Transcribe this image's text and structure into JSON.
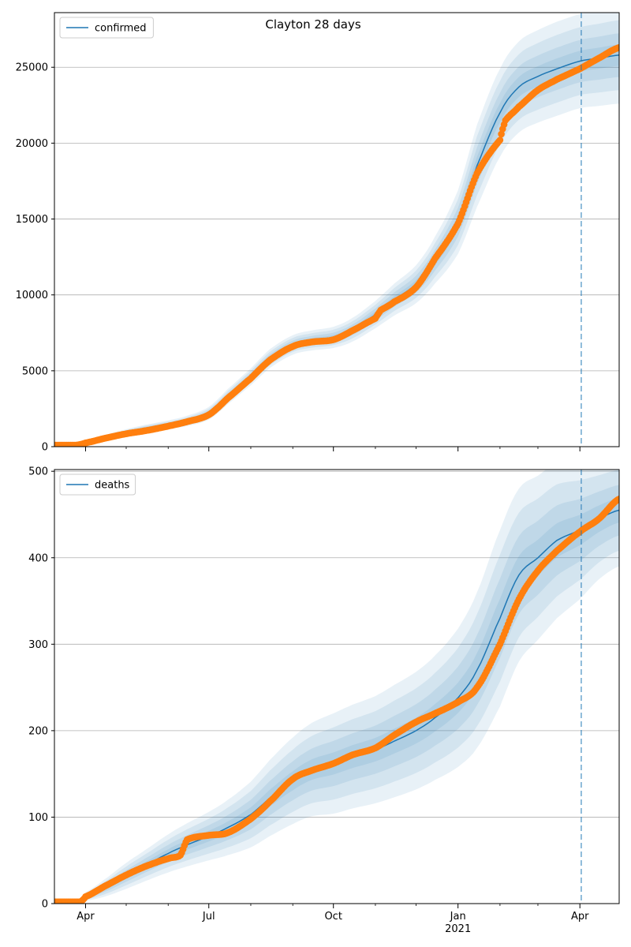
{
  "figure_title": "Clayton 28 days",
  "colors": {
    "model_line": "#1f77b4",
    "band": "#1f77b4",
    "observed": "#ff7f0e",
    "forecast_start": "#1f77b4",
    "grid": "#b0b0b0"
  },
  "x_axis": {
    "start_date": "2020-03-09",
    "end_date": "2021-04-30",
    "tick_labels": [
      {
        "date": "2020-04-01",
        "label": "Apr",
        "sublabel": ""
      },
      {
        "date": "2020-07-01",
        "label": "Jul",
        "sublabel": ""
      },
      {
        "date": "2020-10-01",
        "label": "Oct",
        "sublabel": ""
      },
      {
        "date": "2021-01-01",
        "label": "Jan",
        "sublabel": "2021"
      },
      {
        "date": "2021-04-01",
        "label": "Apr",
        "sublabel": ""
      }
    ],
    "minor_ticks": [
      "2020-05-01",
      "2020-06-01",
      "2020-08-01",
      "2020-09-01",
      "2020-11-01",
      "2020-12-01",
      "2021-02-01",
      "2021-03-01"
    ],
    "forecast_start": "2021-04-02"
  },
  "chart_data": [
    {
      "type": "line",
      "legend": "confirmed",
      "legend_position": "top-left",
      "grid": "horizontal",
      "ylim": [
        0,
        28600
      ],
      "yticks": [
        0,
        5000,
        10000,
        15000,
        20000,
        25000
      ],
      "model": {
        "x": [
          "2020-03-09",
          "2020-03-25",
          "2020-04-01",
          "2020-04-15",
          "2020-05-01",
          "2020-05-15",
          "2020-06-01",
          "2020-06-15",
          "2020-07-01",
          "2020-07-15",
          "2020-08-01",
          "2020-08-15",
          "2020-09-01",
          "2020-09-15",
          "2020-10-01",
          "2020-10-15",
          "2020-11-01",
          "2020-11-15",
          "2020-12-01",
          "2020-12-15",
          "2021-01-01",
          "2021-01-15",
          "2021-02-01",
          "2021-02-15",
          "2021-03-01",
          "2021-03-15",
          "2021-04-01",
          "2021-04-15",
          "2021-04-30"
        ],
        "y": [
          100,
          120,
          250,
          600,
          950,
          1200,
          1450,
          1700,
          2200,
          3300,
          4600,
          5800,
          6700,
          7000,
          7200,
          7700,
          8700,
          9700,
          10700,
          12300,
          14800,
          18500,
          22000,
          23700,
          24400,
          24900,
          25400,
          25600,
          25800
        ],
        "band_half_width": [
          50,
          60,
          110,
          160,
          200,
          240,
          280,
          340,
          420,
          500,
          560,
          620,
          640,
          660,
          700,
          780,
          900,
          1050,
          1250,
          1550,
          2100,
          2700,
          2900,
          3000,
          3050,
          3100,
          3100,
          3150,
          3200
        ]
      },
      "observed": {
        "x": [
          "2020-03-09",
          "2020-03-25",
          "2020-04-01",
          "2020-04-15",
          "2020-05-01",
          "2020-05-15",
          "2020-06-01",
          "2020-06-15",
          "2020-07-01",
          "2020-07-15",
          "2020-08-01",
          "2020-08-15",
          "2020-09-01",
          "2020-09-15",
          "2020-10-01",
          "2020-10-15",
          "2020-11-01",
          "2020-11-05",
          "2020-11-15",
          "2020-12-01",
          "2020-12-15",
          "2021-01-01",
          "2021-01-15",
          "2021-02-01",
          "2021-02-05",
          "2021-02-15",
          "2021-03-01",
          "2021-03-15",
          "2021-04-01",
          "2021-04-15",
          "2021-04-30"
        ],
        "y": [
          100,
          100,
          250,
          550,
          850,
          1050,
          1350,
          1650,
          2100,
          3200,
          4500,
          5700,
          6600,
          6900,
          7050,
          7650,
          8450,
          9000,
          9550,
          10500,
          12400,
          14700,
          18000,
          20200,
          21500,
          22400,
          23500,
          24200,
          24900,
          25600,
          26300
        ]
      }
    },
    {
      "type": "line",
      "legend": "deaths",
      "legend_position": "top-left",
      "grid": "horizontal",
      "ylim": [
        0,
        502
      ],
      "yticks": [
        0,
        100,
        200,
        300,
        400,
        500
      ],
      "model": {
        "x": [
          "2020-03-09",
          "2020-03-25",
          "2020-04-01",
          "2020-04-15",
          "2020-05-01",
          "2020-05-15",
          "2020-06-01",
          "2020-06-15",
          "2020-07-01",
          "2020-07-15",
          "2020-08-01",
          "2020-08-15",
          "2020-09-01",
          "2020-09-15",
          "2020-10-01",
          "2020-10-15",
          "2020-11-01",
          "2020-11-15",
          "2020-12-01",
          "2020-12-15",
          "2021-01-01",
          "2021-01-15",
          "2021-02-01",
          "2021-02-15",
          "2021-03-01",
          "2021-03-15",
          "2021-04-01",
          "2021-04-15",
          "2021-04-30"
        ],
        "y": [
          1,
          1,
          8,
          18,
          32,
          44,
          58,
          68,
          78,
          88,
          103,
          122,
          142,
          155,
          162,
          170,
          178,
          188,
          200,
          215,
          238,
          270,
          330,
          380,
          400,
          420,
          432,
          445,
          455
        ],
        "band_half_width": [
          1,
          2,
          5,
          10,
          15,
          18,
          22,
          25,
          28,
          32,
          38,
          44,
          50,
          54,
          58,
          60,
          62,
          65,
          68,
          72,
          80,
          90,
          102,
          100,
          95,
          90,
          80,
          70,
          65
        ]
      },
      "observed": {
        "x": [
          "2020-03-09",
          "2020-03-28",
          "2020-04-01",
          "2020-04-15",
          "2020-05-01",
          "2020-05-15",
          "2020-06-01",
          "2020-06-10",
          "2020-06-15",
          "2020-07-01",
          "2020-07-15",
          "2020-08-01",
          "2020-08-15",
          "2020-09-01",
          "2020-09-15",
          "2020-10-01",
          "2020-10-15",
          "2020-11-01",
          "2020-11-15",
          "2020-12-01",
          "2020-12-15",
          "2021-01-01",
          "2021-01-15",
          "2021-02-01",
          "2021-02-15",
          "2021-03-01",
          "2021-03-15",
          "2021-04-01",
          "2021-04-15",
          "2021-04-30"
        ],
        "y": [
          2,
          2,
          8,
          20,
          33,
          43,
          52,
          56,
          74,
          79,
          82,
          98,
          118,
          144,
          154,
          162,
          172,
          180,
          195,
          210,
          220,
          233,
          250,
          300,
          352,
          385,
          408,
          430,
          445,
          468
        ]
      }
    }
  ]
}
